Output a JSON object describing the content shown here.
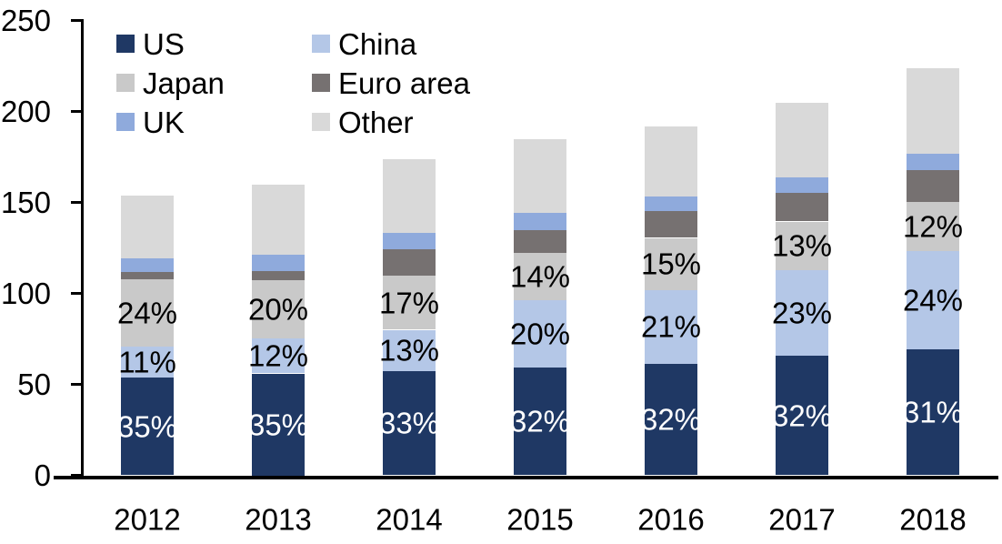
{
  "chart_data": {
    "type": "bar",
    "stacked": true,
    "title": "",
    "background": "#FFFFFF",
    "categories": [
      "2012",
      "2013",
      "2014",
      "2015",
      "2016",
      "2017",
      "2018"
    ],
    "series": [
      {
        "name": "US",
        "color": "#1F3864",
        "values": [
          53.9,
          56.0,
          57.4,
          59.2,
          61.4,
          65.6,
          69.4
        ],
        "pct_labels": [
          "35%",
          "35%",
          "33%",
          "32%",
          "32%",
          "32%",
          "31%"
        ],
        "label_color": "#FFFFFF"
      },
      {
        "name": "China",
        "color": "#B4C7E7",
        "values": [
          16.9,
          19.2,
          22.6,
          37.0,
          40.3,
          47.2,
          53.8
        ],
        "pct_labels": [
          "11%",
          "12%",
          "13%",
          "20%",
          "21%",
          "23%",
          "24%"
        ],
        "label_color": "#000000"
      },
      {
        "name": "Japan",
        "color": "#C9C9C9",
        "values": [
          37.0,
          32.0,
          29.6,
          25.9,
          28.8,
          26.7,
          26.9
        ],
        "pct_labels": [
          "24%",
          "20%",
          "17%",
          "14%",
          "15%",
          "13%",
          "12%"
        ],
        "label_color": "#000000"
      },
      {
        "name": "Euro area",
        "color": "#767171",
        "values": [
          4.0,
          5.0,
          14.5,
          12.6,
          14.6,
          15.7,
          17.8
        ],
        "pct_labels": null,
        "label_color": "#000000"
      },
      {
        "name": "UK",
        "color": "#8FAADC",
        "values": [
          7.5,
          9.0,
          9.2,
          9.5,
          8.4,
          8.8,
          9.0
        ],
        "pct_labels": null,
        "label_color": "#000000"
      },
      {
        "name": "Other",
        "color": "#D9D9D9",
        "values": [
          34.7,
          38.8,
          40.7,
          40.8,
          38.5,
          41.0,
          47.1
        ],
        "pct_labels": null,
        "label_color": "#000000"
      }
    ],
    "totals": [
      154,
      160,
      174,
      185,
      192,
      205,
      224
    ],
    "y_axis": {
      "min": 0,
      "max": 250,
      "step": 50,
      "ticks": [
        "0",
        "50",
        "100",
        "150",
        "200",
        "250"
      ],
      "grid": false
    },
    "legend": {
      "position": "top-left",
      "columns": 2,
      "order": [
        "US",
        "China",
        "Japan",
        "Euro area",
        "UK",
        "Other"
      ]
    },
    "axis_color": "#000000",
    "text_color": "#000000"
  }
}
